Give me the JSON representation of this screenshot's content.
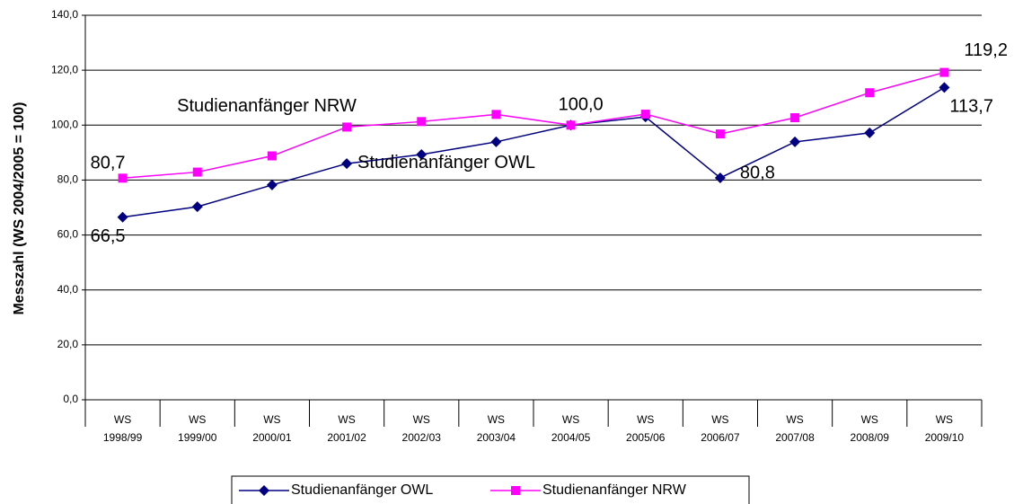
{
  "chart_data": {
    "type": "line",
    "ylabel": "Messzahl (WS 2004/2005 = 100)",
    "categories": [
      "WS 1998/99",
      "WS 1999/00",
      "WS 2000/01",
      "WS 2001/02",
      "WS 2002/03",
      "WS 2003/04",
      "WS 2004/05",
      "WS 2005/06",
      "WS 2006/07",
      "WS 2007/08",
      "WS 2008/09",
      "WS 2009/10"
    ],
    "series": [
      {
        "name": "Studienanfänger OWL",
        "color": "#000080",
        "marker": "diamond",
        "values": [
          66.5,
          70.3,
          78.2,
          86.0,
          89.3,
          93.9,
          100.0,
          103.0,
          80.8,
          93.9,
          97.2,
          113.7
        ],
        "value_labels": [
          "66,5",
          null,
          null,
          null,
          null,
          null,
          null,
          null,
          "80,8",
          null,
          null,
          "113,7"
        ]
      },
      {
        "name": "Studienanfänger NRW",
        "color": "#ff00ff",
        "marker": "square",
        "values": [
          80.7,
          82.9,
          88.8,
          99.3,
          101.3,
          103.9,
          100.0,
          104.0,
          96.8,
          102.7,
          111.8,
          119.2
        ],
        "value_labels": [
          "80,7",
          null,
          null,
          null,
          null,
          null,
          "100,0",
          null,
          null,
          null,
          null,
          "119,2"
        ]
      }
    ],
    "annotations": [
      "Studienanfänger NRW",
      "Studienanfänger OWL"
    ],
    "ylim": [
      0,
      140
    ],
    "yticks": [
      {
        "value": 0,
        "label": "0,0"
      },
      {
        "value": 20,
        "label": "20,0"
      },
      {
        "value": 40,
        "label": "40,0"
      },
      {
        "value": 60,
        "label": "60,0"
      },
      {
        "value": 80,
        "label": "80,0"
      },
      {
        "value": 100,
        "label": "100,0"
      },
      {
        "value": 120,
        "label": "120,0"
      },
      {
        "value": 140,
        "label": "140,0"
      }
    ],
    "grid": true,
    "legend": "bottom"
  }
}
